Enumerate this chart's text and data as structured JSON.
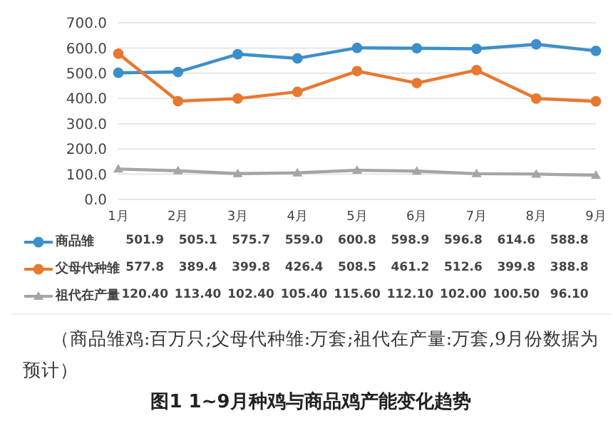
{
  "chart_data": {
    "type": "line",
    "title": "图1  1~9月种鸡与商品鸡产能变化趋势",
    "annotations": [
      "（商品雏鸡:百万只;父母代种雏:万套;祖代在产量:万套,9月份数据为预计）"
    ],
    "categories": [
      "1月",
      "2月",
      "3月",
      "4月",
      "5月",
      "6月",
      "7月",
      "8月",
      "9月"
    ],
    "series": [
      {
        "name": "商品雏",
        "color": "#3d8fc9",
        "marker": "circle",
        "values": [
          501.9,
          505.1,
          575.7,
          559.0,
          600.8,
          598.9,
          596.8,
          614.6,
          588.8
        ],
        "value_labels": [
          "501.9",
          "505.1",
          "575.7",
          "559.0",
          "600.8",
          "598.9",
          "596.8",
          "614.6",
          "588.8"
        ]
      },
      {
        "name": "父母代种雏",
        "color": "#e8782f",
        "marker": "circle",
        "values": [
          577.8,
          389.4,
          399.8,
          426.4,
          508.5,
          461.2,
          512.6,
          399.8,
          388.8
        ],
        "value_labels": [
          "577.8",
          "389.4",
          "399.8",
          "426.4",
          "508.5",
          "461.2",
          "512.6",
          "399.8",
          "388.8"
        ]
      },
      {
        "name": "祖代在产量",
        "color": "#a5a5a5",
        "marker": "triangle",
        "values": [
          120.4,
          113.4,
          102.4,
          105.4,
          115.6,
          112.1,
          102.0,
          100.5,
          96.1
        ],
        "value_labels": [
          "120.40",
          "113.40",
          "102.40",
          "105.40",
          "115.60",
          "112.10",
          "102.00",
          "100.50",
          "96.10"
        ]
      }
    ],
    "ylim": [
      0,
      700
    ],
    "yticks": [
      {
        "value": 0,
        "label": "0.0"
      },
      {
        "value": 100,
        "label": "100.0"
      },
      {
        "value": 200,
        "label": "200.0"
      },
      {
        "value": 300,
        "label": "300.0"
      },
      {
        "value": 400,
        "label": "400.0"
      },
      {
        "value": 500,
        "label": "500.0"
      },
      {
        "value": 600,
        "label": "600.0"
      },
      {
        "value": 700,
        "label": "700.0"
      }
    ],
    "grid": "y",
    "legend": "bottom"
  }
}
